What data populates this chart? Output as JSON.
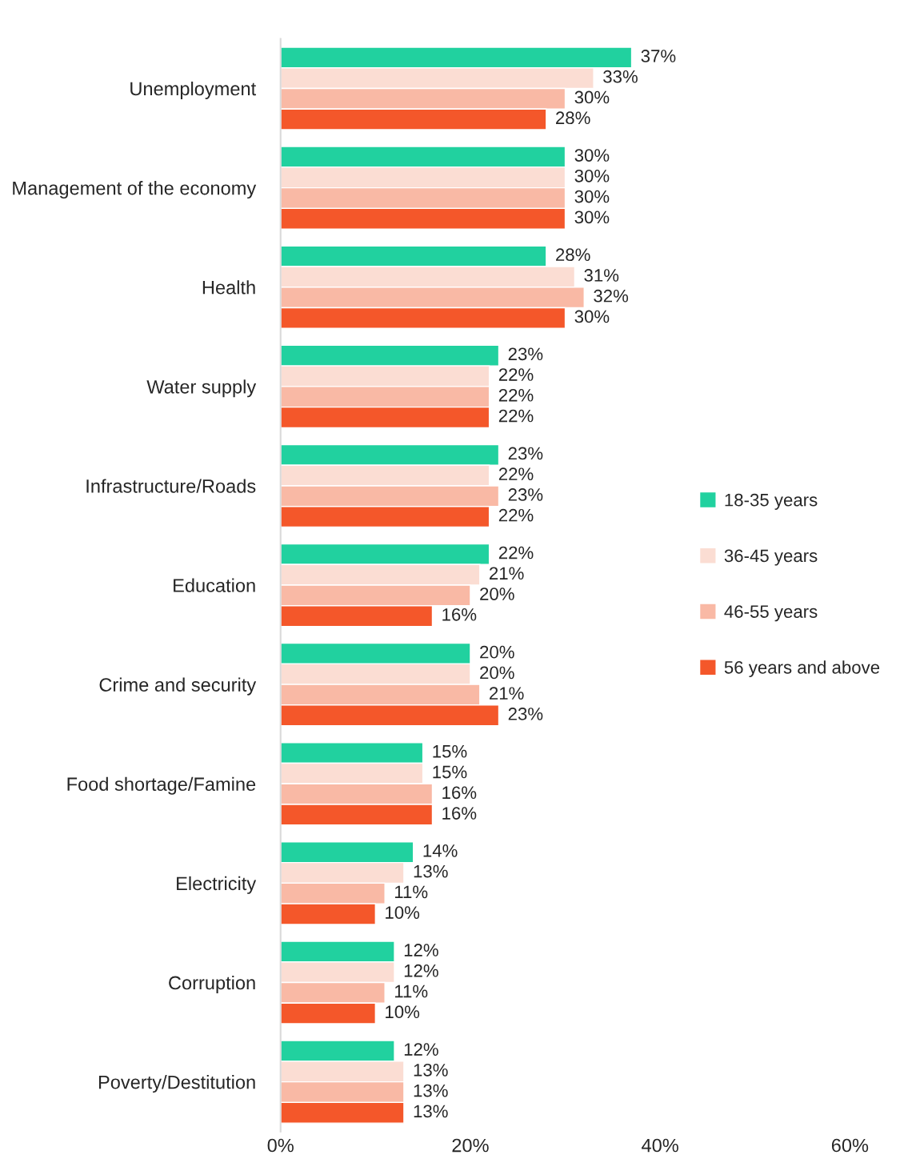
{
  "chart_data": {
    "type": "bar",
    "orientation": "horizontal",
    "categories": [
      "Unemployment",
      "Management of the economy",
      "Health",
      "Water supply",
      "Infrastructure/Roads",
      "Education",
      "Crime and security",
      "Food shortage/Famine",
      "Electricity",
      "Corruption",
      "Poverty/Destitution"
    ],
    "series": [
      {
        "name": "18-35 years",
        "color": "#21d19f",
        "values": [
          37,
          30,
          28,
          23,
          23,
          22,
          20,
          15,
          14,
          12,
          12
        ],
        "value_labels": [
          "37%",
          "30%",
          "28%",
          "23%",
          "23%",
          "22%",
          "20%",
          "15%",
          "14%",
          "12%",
          "12%"
        ]
      },
      {
        "name": "36-45 years",
        "color": "#fbddd3",
        "values": [
          33,
          30,
          31,
          22,
          22,
          21,
          20,
          15,
          13,
          12,
          13
        ],
        "value_labels": [
          "33%",
          "30%",
          "31%",
          "22%",
          "22%",
          "21%",
          "20%",
          "15%",
          "13%",
          "12%",
          "13%"
        ]
      },
      {
        "name": "46-55 years",
        "color": "#f9b9a5",
        "values": [
          30,
          30,
          32,
          22,
          23,
          20,
          21,
          16,
          11,
          11,
          13
        ],
        "value_labels": [
          "30%",
          "30%",
          "32%",
          "22%",
          "23%",
          "20%",
          "21%",
          "16%",
          "11%",
          "11%",
          "13%"
        ]
      },
      {
        "name": "56 years and above",
        "color": "#f4572a",
        "values": [
          28,
          30,
          30,
          22,
          22,
          16,
          23,
          16,
          10,
          10,
          13
        ],
        "value_labels": [
          "28%",
          "30%",
          "30%",
          "22%",
          "22%",
          "16%",
          "23%",
          "16%",
          "10%",
          "10%",
          "13%"
        ]
      }
    ],
    "xlim": [
      0,
      60
    ],
    "xticks": [
      {
        "value": 0,
        "label": "0%"
      },
      {
        "value": 20,
        "label": "20%"
      },
      {
        "value": 40,
        "label": "40%"
      },
      {
        "value": 60,
        "label": "60%"
      }
    ],
    "grid": false,
    "legend": "right"
  }
}
